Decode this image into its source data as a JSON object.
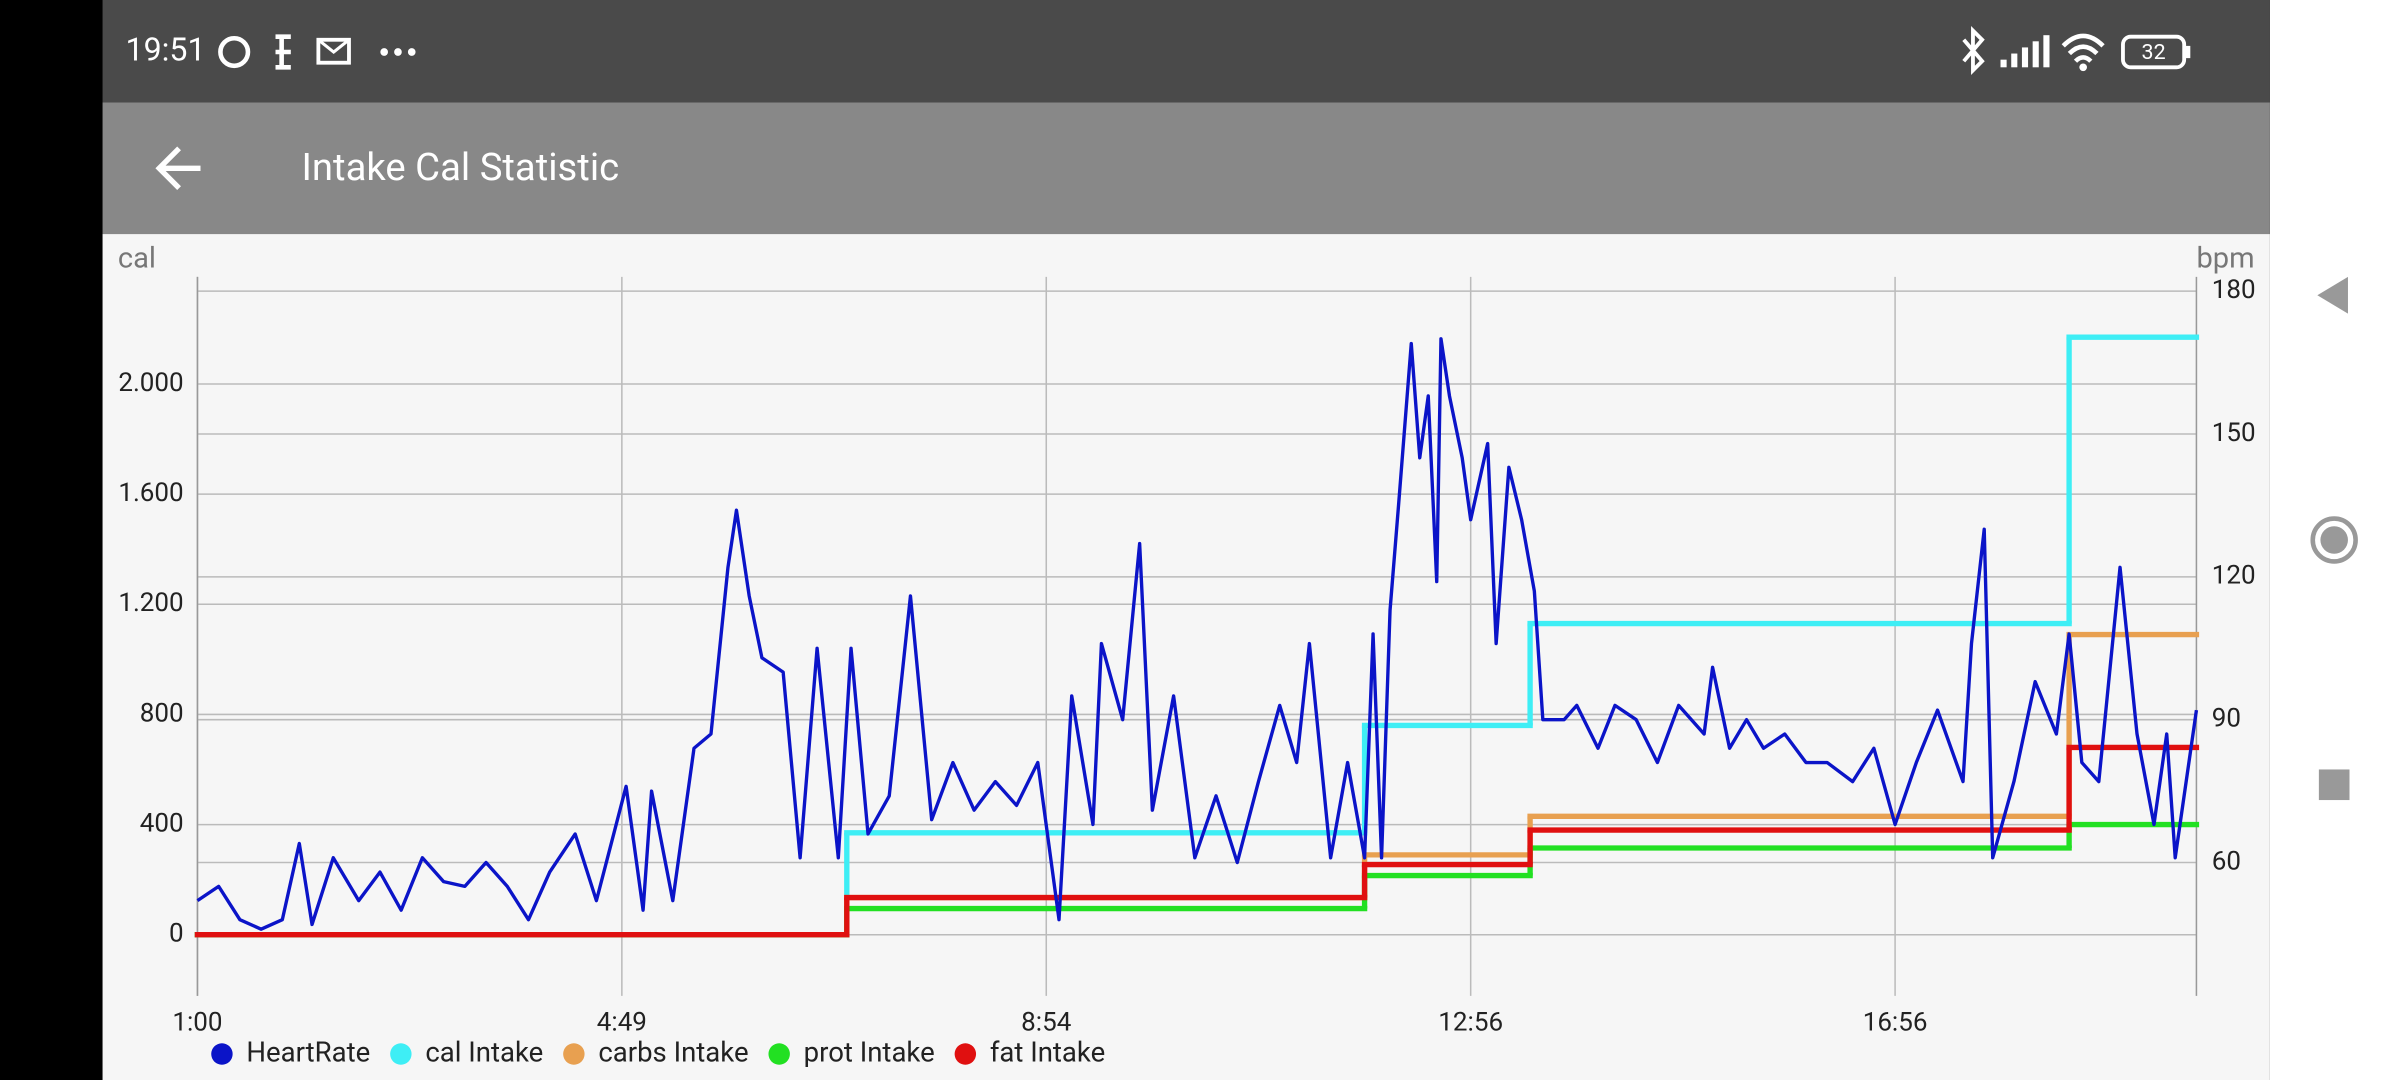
{
  "status_bar": {
    "time": "19:51",
    "battery": "32"
  },
  "app_bar": {
    "title": "Intake Cal Statistic"
  },
  "chart_data": {
    "type": "line",
    "ylabel": "cal",
    "y2label": "bpm",
    "xlim": [
      0,
      471
    ],
    "xticks": [
      {
        "value": 0,
        "label": "1:00"
      },
      {
        "value": 100,
        "label": "4:49"
      },
      {
        "value": 200,
        "label": "8:54"
      },
      {
        "value": 300,
        "label": "12:56"
      },
      {
        "value": 400,
        "label": "16:56"
      }
    ],
    "ylim": [
      -222,
      2389
    ],
    "yticks": [
      0,
      400,
      800,
      {
        "value": 1200,
        "label": "1.200"
      },
      {
        "value": 1600,
        "label": "1.600"
      },
      {
        "value": 2000,
        "label": "2.000"
      }
    ],
    "y2lim": [
      32,
      183
    ],
    "y2ticks": [
      60,
      90,
      120,
      150,
      180
    ],
    "grid": true,
    "legend": "bottom-left",
    "series": [
      {
        "name": "HeartRate",
        "color": "#0b14c8",
        "axis": "y2",
        "x": [
          0,
          5,
          10,
          15,
          20,
          24,
          27,
          32,
          38,
          43,
          48,
          53,
          58,
          63,
          68,
          73,
          78,
          83,
          89,
          94,
          101,
          105,
          107,
          112,
          117,
          121,
          125,
          127,
          130,
          133,
          138,
          142,
          146,
          151,
          154,
          158,
          163,
          168,
          173,
          178,
          183,
          188,
          193,
          198,
          203,
          206,
          211,
          213,
          218,
          222,
          225,
          230,
          235,
          240,
          245,
          250,
          255,
          259,
          262,
          267,
          271,
          275,
          277,
          279,
          281,
          283,
          286,
          288,
          290,
          292,
          293,
          295,
          298,
          300,
          304,
          306,
          309,
          312,
          315,
          317,
          322,
          325,
          330,
          334,
          339,
          344,
          349,
          355,
          357,
          361,
          365,
          369,
          374,
          379,
          384,
          390,
          395,
          400,
          405,
          410,
          416,
          418,
          421,
          423,
          428,
          433,
          438,
          441,
          444,
          448,
          453,
          457,
          461,
          464,
          466,
          471
        ],
        "values": [
          52,
          55,
          48,
          46,
          48,
          64,
          47,
          61,
          52,
          58,
          50,
          61,
          56,
          55,
          60,
          55,
          48,
          58,
          66,
          52,
          76,
          50,
          75,
          52,
          84,
          87,
          122,
          134,
          116,
          103,
          100,
          61,
          105,
          61,
          105,
          66,
          74,
          116,
          69,
          81,
          71,
          77,
          72,
          81,
          48,
          95,
          68,
          106,
          90,
          127,
          71,
          95,
          61,
          74,
          60,
          77,
          93,
          81,
          106,
          61,
          81,
          61,
          108,
          61,
          113,
          135,
          169,
          145,
          158,
          119,
          170,
          158,
          145,
          132,
          148,
          106,
          143,
          132,
          117,
          90,
          90,
          93,
          84,
          93,
          90,
          81,
          93,
          87,
          101,
          84,
          90,
          84,
          87,
          81,
          81,
          77,
          84,
          68,
          81,
          92,
          77,
          106,
          130,
          61,
          77,
          98,
          87,
          108,
          81,
          77,
          122,
          87,
          68,
          87,
          61,
          92
        ]
      },
      {
        "name": "cal Intake",
        "color": "#3eeef5",
        "step": true,
        "x": [
          0,
          153,
          275,
          314,
          441
        ],
        "values": [
          0,
          370,
          760,
          1130,
          2170
        ]
      },
      {
        "name": "carbs Intake",
        "color": "#e8a050",
        "step": true,
        "x": [
          0,
          153,
          275,
          314,
          441
        ],
        "values": [
          0,
          135,
          290,
          430,
          1090
        ]
      },
      {
        "name": "prot Intake",
        "color": "#22e022",
        "step": true,
        "x": [
          0,
          153,
          275,
          314,
          441
        ],
        "values": [
          0,
          95,
          215,
          315,
          400
        ]
      },
      {
        "name": "fat Intake",
        "color": "#e01010",
        "step": true,
        "x": [
          0,
          153,
          275,
          314,
          441
        ],
        "values": [
          0,
          135,
          255,
          380,
          680
        ]
      }
    ]
  }
}
